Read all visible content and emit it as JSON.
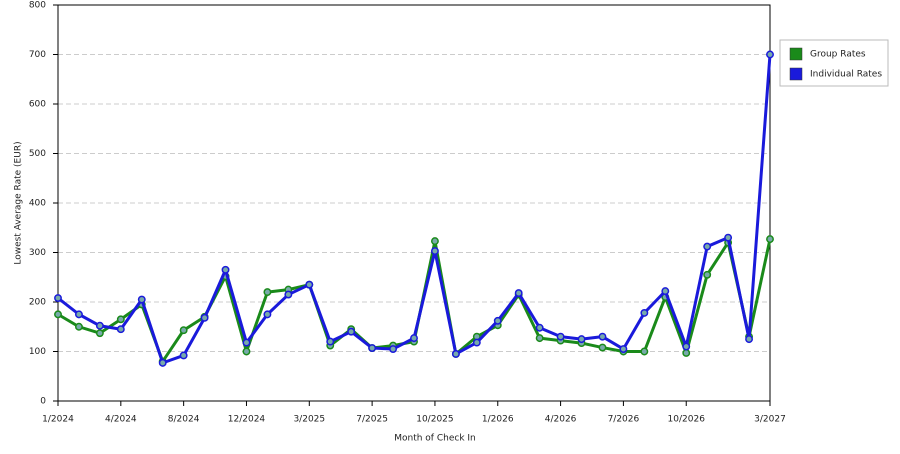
{
  "chart_data": {
    "type": "line",
    "x_label": "Month of Check In",
    "y_label": "Lowest Average Rate (EUR)",
    "categories": [
      "1/2024",
      null,
      null,
      "4/2024",
      null,
      null,
      "8/2024",
      null,
      null,
      "12/2024",
      null,
      null,
      "3/2025",
      null,
      null,
      "7/2025",
      null,
      null,
      "10/2025",
      null,
      null,
      "1/2026",
      null,
      null,
      "4/2026",
      null,
      null,
      "7/2026",
      null,
      null,
      "10/2026",
      null,
      null,
      null,
      "3/2027"
    ],
    "series": [
      {
        "name": "Group Rates",
        "color": "#1a8a1a",
        "values": [
          175,
          150,
          137,
          165,
          195,
          80,
          143,
          170,
          252,
          100,
          220,
          225,
          235,
          112,
          145,
          107,
          112,
          120,
          323,
          95,
          130,
          153,
          215,
          127,
          122,
          117,
          108,
          100,
          100,
          210,
          97,
          255,
          320,
          130,
          327
        ]
      },
      {
        "name": "Individual Rates",
        "color": "#1a1adb",
        "values": [
          208,
          175,
          152,
          145,
          205,
          77,
          92,
          168,
          265,
          118,
          175,
          215,
          235,
          120,
          140,
          107,
          105,
          127,
          303,
          95,
          118,
          162,
          218,
          148,
          130,
          125,
          130,
          105,
          178,
          222,
          110,
          312,
          330,
          125,
          700
        ]
      }
    ],
    "ylim": [
      0,
      800
    ],
    "yticks": [
      0,
      100,
      200,
      300,
      400,
      500,
      600,
      700,
      800
    ],
    "grid": true,
    "legend": "right"
  }
}
